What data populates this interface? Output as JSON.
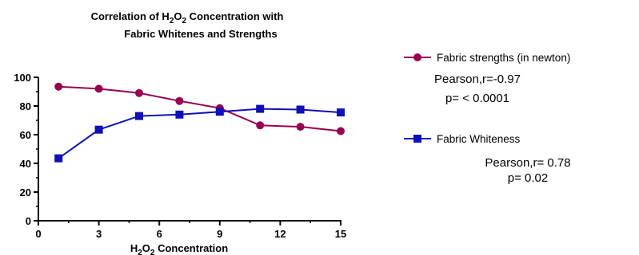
{
  "chart_data": {
    "type": "line",
    "title_line1_prefix": "Correlation of H",
    "title_line1_sub1": "2",
    "title_line1_mid": "O",
    "title_line1_sub2": "2",
    "title_line1_suffix": " Concentration with",
    "title_line2": "Fabric Whitenes and Strengths",
    "xlabel_prefix": "H",
    "xlabel_sub1": "2",
    "xlabel_mid": "O",
    "xlabel_sub2": "2",
    "xlabel_suffix": " Concentration",
    "ylabel": "",
    "xlim": [
      0,
      15
    ],
    "ylim": [
      0,
      100
    ],
    "x_ticks": [
      0,
      3,
      6,
      9,
      12,
      15
    ],
    "y_ticks": [
      0,
      20,
      40,
      60,
      80,
      100
    ],
    "grid": false,
    "legend_position": "right",
    "series": [
      {
        "name": "Fabric strengths (in newton)",
        "color": "#990050",
        "marker": "circle",
        "x": [
          1,
          3,
          5,
          7,
          9,
          11,
          13,
          15
        ],
        "y": [
          93.5,
          92,
          89,
          83.5,
          78.5,
          66.5,
          65.5,
          62.5
        ],
        "stat_line1": "Pearson,r=-0.97",
        "stat_line2": "p=  < 0.0001"
      },
      {
        "name": "Fabric Whiteness",
        "color": "#1010b8",
        "marker": "square",
        "x": [
          1,
          3,
          5,
          7,
          9,
          11,
          13,
          15
        ],
        "y": [
          43.5,
          63.5,
          73,
          74,
          76,
          78,
          77.5,
          75.5
        ],
        "stat_line1": "Pearson,r= 0.78",
        "stat_line2": "p= 0.02"
      }
    ]
  }
}
